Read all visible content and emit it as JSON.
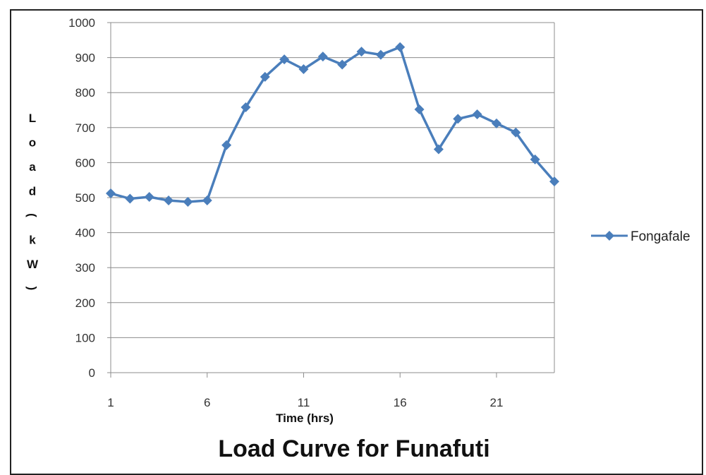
{
  "chart_data": {
    "type": "line",
    "title": "Load Curve for Funafuti",
    "xlabel": "Time (hrs)",
    "ylabel": "Load (kW)",
    "ylim": [
      0,
      1000
    ],
    "xlim": [
      1,
      24
    ],
    "yticks": [
      0,
      100,
      200,
      300,
      400,
      500,
      600,
      700,
      800,
      900,
      1000
    ],
    "xticks": [
      1,
      6,
      11,
      16,
      21
    ],
    "grid": "horizontal",
    "legend_position": "right",
    "series": [
      {
        "name": "Fongafale",
        "color": "#4a7ebb",
        "marker": "diamond",
        "x": [
          1,
          2,
          3,
          4,
          5,
          6,
          7,
          8,
          9,
          10,
          11,
          12,
          13,
          14,
          15,
          16,
          17,
          18,
          19,
          20,
          21,
          22,
          23,
          24
        ],
        "y": [
          512,
          497,
          502,
          492,
          488,
          492,
          650,
          758,
          845,
          895,
          867,
          903,
          880,
          917,
          908,
          930,
          752,
          638,
          725,
          738,
          712,
          686,
          609,
          546
        ]
      }
    ]
  }
}
